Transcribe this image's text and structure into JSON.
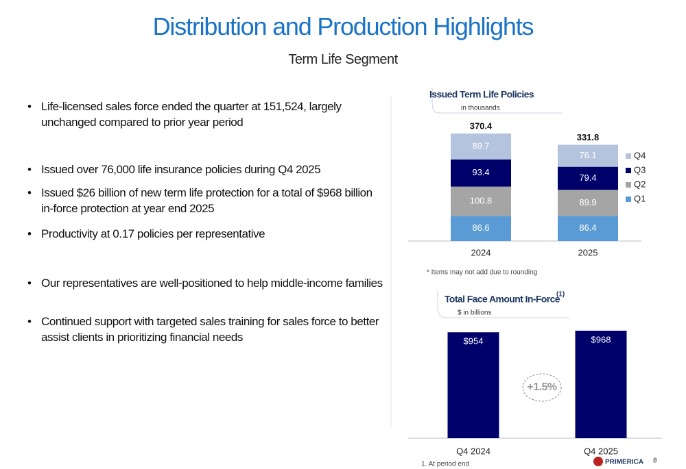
{
  "header": {
    "title": "Distribution and Production Highlights",
    "subtitle": "Term Life Segment"
  },
  "bullets": [
    "Life-licensed sales force ended the quarter at 151,524, largely unchanged compared to prior year period",
    "Issued over 76,000 life insurance policies during Q4 2025",
    "Issued $26 billion of new term life protection for a total of $968 billion in-force protection at year end 2025",
    "Productivity at 0.17 policies per representative",
    "Our representatives are well-positioned to help middle-income families",
    "Continued support with targeted sales training for sales force to better assist clients in prioritizing financial needs"
  ],
  "chart_data": [
    {
      "type": "stacked_bar",
      "title": "Issued Term Life Policies",
      "subtitle": "in thousands",
      "categories": [
        "2024",
        "2025"
      ],
      "series": [
        {
          "name": "Q1",
          "color": "#5b9bd5",
          "values": [
            86.6,
            86.4
          ]
        },
        {
          "name": "Q2",
          "color": "#a5a5a5",
          "values": [
            100.8,
            89.9
          ]
        },
        {
          "name": "Q3",
          "color": "#00006b",
          "values": [
            93.4,
            79.4
          ]
        },
        {
          "name": "Q4",
          "color": "#b4c3de",
          "values": [
            89.7,
            76.1
          ]
        }
      ],
      "totals": [
        370.4,
        331.8
      ],
      "legend": "right",
      "note": "* Items may not add due to rounding"
    },
    {
      "type": "bar",
      "title": "Total Face Amount In-Force",
      "title_marker": "(1)",
      "subtitle": "$ in billions",
      "categories": [
        "Q4 2024",
        "Q4 2025"
      ],
      "values": [
        954,
        968
      ],
      "value_labels": [
        "$954",
        "$968"
      ],
      "color": "#00006b",
      "annotation": "+1.5%",
      "note": "1. At period end"
    }
  ],
  "footer": {
    "logo": "PRIMERICA",
    "page": "8"
  }
}
